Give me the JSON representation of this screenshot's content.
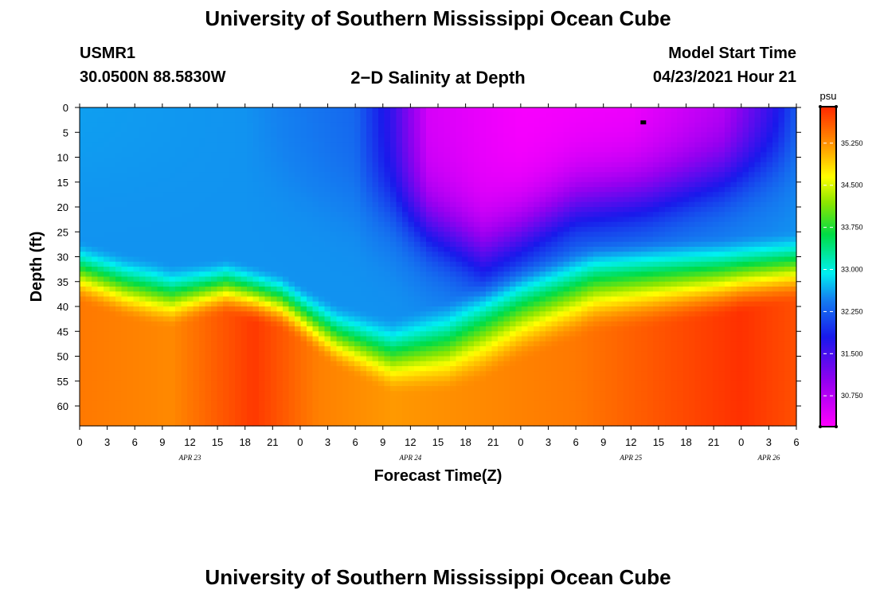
{
  "header": {
    "title_top": "University of Southern Mississippi Ocean Cube",
    "station": "USMR1",
    "coords": "30.0500N  88.5830W",
    "plot_title": "2−D Salinity at Depth",
    "model_label": "Model Start Time",
    "model_time": "04/23/2021 Hour 21",
    "title_bottom": "University of Southern Mississippi Ocean Cube"
  },
  "chart_data": {
    "type": "heatmap",
    "title": "2−D Salinity at Depth",
    "xlabel": "Forecast Time(Z)",
    "ylabel": "Depth (ft)",
    "x_hours_range": [
      0,
      78
    ],
    "x_tick_labels": [
      "0",
      "3",
      "6",
      "9",
      "12",
      "15",
      "18",
      "21",
      "0",
      "3",
      "6",
      "9",
      "12",
      "15",
      "18",
      "21",
      "0",
      "3",
      "6",
      "9",
      "12",
      "15",
      "18",
      "21",
      "0",
      "3",
      "6"
    ],
    "date_labels": [
      {
        "text": "APR 23",
        "hour": 12
      },
      {
        "text": "APR 24",
        "hour": 36
      },
      {
        "text": "APR 25",
        "hour": 60
      },
      {
        "text": "APR 26",
        "hour": 75
      }
    ],
    "y_range": [
      0,
      64
    ],
    "y_ticks": [
      0,
      5,
      10,
      15,
      20,
      25,
      30,
      35,
      40,
      45,
      50,
      55,
      60
    ],
    "colorbar": {
      "unit": "psu",
      "range": [
        30.2,
        35.9
      ],
      "ticks": [
        "35.250",
        "34.500",
        "33.750",
        "33.000",
        "32.250",
        "31.500",
        "30.750"
      ]
    },
    "marker": {
      "hour": 61.3,
      "depth": 3
    }
  }
}
